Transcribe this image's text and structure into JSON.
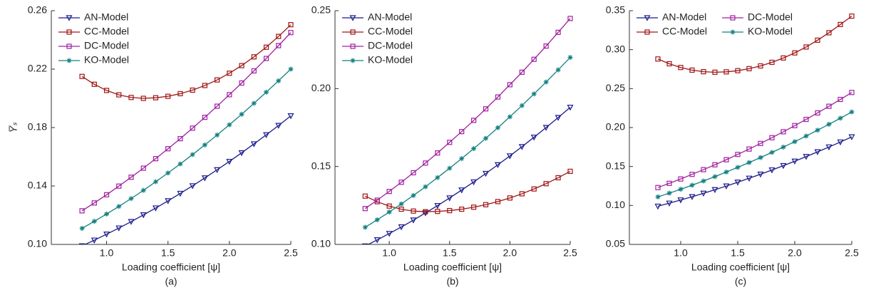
{
  "chart_data": [
    {
      "type": "line",
      "subtitle": "(a)",
      "xlabel": "Loading coefficient [ψ]",
      "ylabel": "Y̅ₛ",
      "x": [
        0.8,
        0.9,
        1.0,
        1.1,
        1.2,
        1.3,
        1.4,
        1.5,
        1.6,
        1.7,
        1.8,
        1.9,
        2.0,
        2.1,
        2.2,
        2.3,
        2.4,
        2.5
      ],
      "xlim": [
        0.55,
        2.5
      ],
      "xticks": [
        {
          "value": 1,
          "label": "1.0"
        },
        1.5,
        {
          "value": 2,
          "label": "2.0"
        },
        2.5
      ],
      "ylim": [
        0.1,
        0.26
      ],
      "yticks": [
        {
          "value": 0.1,
          "label": "0.10"
        },
        0.14,
        0.18,
        0.22,
        0.26
      ],
      "legend": "upper left",
      "legend_columns": 1,
      "series": [
        {
          "name": "AN-Model",
          "color": "#1a1a8c",
          "marker": "triangle-down",
          "values": [
            0.099,
            0.1029,
            0.107,
            0.1112,
            0.1156,
            0.1202,
            0.1249,
            0.1298,
            0.1349,
            0.1401,
            0.1455,
            0.1511,
            0.1568,
            0.1627,
            0.1688,
            0.175,
            0.1814,
            0.188
          ]
        },
        {
          "name": "CC-Model",
          "color": "#a01414",
          "marker": "square",
          "values": [
            0.215,
            0.2096,
            0.2054,
            0.2024,
            0.2006,
            0.2,
            0.2004,
            0.2014,
            0.2032,
            0.2056,
            0.2088,
            0.2126,
            0.2172,
            0.2224,
            0.2284,
            0.235,
            0.2424,
            0.2504
          ]
        },
        {
          "name": "DC-Model",
          "color": "#a0209f",
          "marker": "square",
          "values": [
            0.123,
            0.1284,
            0.134,
            0.1399,
            0.146,
            0.1522,
            0.1587,
            0.1655,
            0.1724,
            0.1796,
            0.187,
            0.1946,
            0.2025,
            0.2105,
            0.2188,
            0.2273,
            0.2361,
            0.245
          ]
        },
        {
          "name": "KO-Model",
          "color": "#138080",
          "marker": "asterisk",
          "values": [
            0.111,
            0.1158,
            0.1208,
            0.126,
            0.1314,
            0.137,
            0.1429,
            0.1489,
            0.1551,
            0.1615,
            0.1681,
            0.1749,
            0.1819,
            0.1891,
            0.1966,
            0.2042,
            0.212,
            0.22
          ]
        }
      ]
    },
    {
      "type": "line",
      "subtitle": "(b)",
      "xlabel": "Loading coefficient [ψ]",
      "x": [
        0.8,
        0.9,
        1.0,
        1.1,
        1.2,
        1.3,
        1.4,
        1.5,
        1.6,
        1.7,
        1.8,
        1.9,
        2.0,
        2.1,
        2.2,
        2.3,
        2.4,
        2.5
      ],
      "xlim": [
        0.55,
        2.5
      ],
      "xticks": [
        {
          "value": 1,
          "label": "1.0"
        },
        1.5,
        {
          "value": 2,
          "label": "2.0"
        },
        2.5
      ],
      "ylim": [
        0.1,
        0.25
      ],
      "yticks": [
        {
          "value": 0.1,
          "label": "0.10"
        },
        0.15,
        {
          "value": 0.2,
          "label": "0.20"
        },
        0.25
      ],
      "legend": "upper left",
      "legend_columns": 1,
      "series": [
        {
          "name": "AN-Model",
          "color": "#1a1a8c",
          "marker": "triangle-down",
          "values": [
            0.099,
            0.1029,
            0.107,
            0.1112,
            0.1156,
            0.1202,
            0.1249,
            0.1298,
            0.1349,
            0.1401,
            0.1455,
            0.1511,
            0.1568,
            0.1627,
            0.1688,
            0.175,
            0.1814,
            0.188
          ]
        },
        {
          "name": "CC-Model",
          "color": "#a01414",
          "marker": "square",
          "values": [
            0.131,
            0.1274,
            0.1246,
            0.1226,
            0.1214,
            0.121,
            0.1212,
            0.1217,
            0.1226,
            0.1239,
            0.1255,
            0.1275,
            0.1298,
            0.1325,
            0.1356,
            0.139,
            0.1428,
            0.1469
          ]
        },
        {
          "name": "DC-Model",
          "color": "#a0209f",
          "marker": "square",
          "values": [
            0.123,
            0.1284,
            0.134,
            0.1399,
            0.146,
            0.1522,
            0.1587,
            0.1655,
            0.1724,
            0.1796,
            0.187,
            0.1946,
            0.2025,
            0.2105,
            0.2188,
            0.2273,
            0.2361,
            0.245
          ]
        },
        {
          "name": "KO-Model",
          "color": "#138080",
          "marker": "asterisk",
          "values": [
            0.111,
            0.1158,
            0.1208,
            0.126,
            0.1314,
            0.137,
            0.1429,
            0.1489,
            0.1551,
            0.1615,
            0.1681,
            0.1749,
            0.1819,
            0.1891,
            0.1966,
            0.2042,
            0.212,
            0.22
          ]
        }
      ]
    },
    {
      "type": "line",
      "subtitle": "(c)",
      "xlabel": "Loading coefficient [ψ]",
      "x": [
        0.8,
        0.9,
        1.0,
        1.1,
        1.2,
        1.3,
        1.4,
        1.5,
        1.6,
        1.7,
        1.8,
        1.9,
        2.0,
        2.1,
        2.2,
        2.3,
        2.4,
        2.5
      ],
      "xlim": [
        0.55,
        2.5
      ],
      "xticks": [
        {
          "value": 1,
          "label": "1.0"
        },
        1.5,
        {
          "value": 2,
          "label": "2.0"
        },
        2.5
      ],
      "ylim": [
        0.05,
        0.35
      ],
      "yticks": [
        0.05,
        {
          "value": 0.1,
          "label": "0.10"
        },
        0.15,
        {
          "value": 0.2,
          "label": "0.20"
        },
        0.25,
        {
          "value": 0.3,
          "label": "0.30"
        },
        0.35
      ],
      "legend": "upper left",
      "legend_columns": 2,
      "series": [
        {
          "name": "AN-Model",
          "color": "#1a1a8c",
          "marker": "triangle-down",
          "values": [
            0.099,
            0.1029,
            0.107,
            0.1112,
            0.1156,
            0.1202,
            0.1249,
            0.1298,
            0.1349,
            0.1401,
            0.1455,
            0.1511,
            0.1568,
            0.1627,
            0.1688,
            0.175,
            0.1814,
            0.188
          ]
        },
        {
          "name": "CC-Model",
          "color": "#a01414",
          "marker": "square",
          "values": [
            0.288,
            0.2819,
            0.2771,
            0.2737,
            0.2717,
            0.271,
            0.2715,
            0.273,
            0.2756,
            0.2791,
            0.2837,
            0.2893,
            0.2958,
            0.3034,
            0.3121,
            0.3217,
            0.3323,
            0.343
          ]
        },
        {
          "name": "DC-Model",
          "color": "#a0209f",
          "marker": "square",
          "values": [
            0.123,
            0.1284,
            0.134,
            0.1399,
            0.146,
            0.1522,
            0.1587,
            0.1655,
            0.1724,
            0.1796,
            0.187,
            0.1946,
            0.2025,
            0.2105,
            0.2188,
            0.2273,
            0.2361,
            0.245
          ]
        },
        {
          "name": "KO-Model",
          "color": "#138080",
          "marker": "asterisk",
          "values": [
            0.111,
            0.1158,
            0.1208,
            0.126,
            0.1314,
            0.137,
            0.1429,
            0.1489,
            0.1551,
            0.1615,
            0.1681,
            0.1749,
            0.1819,
            0.1891,
            0.1966,
            0.2042,
            0.212,
            0.22
          ]
        }
      ]
    }
  ]
}
